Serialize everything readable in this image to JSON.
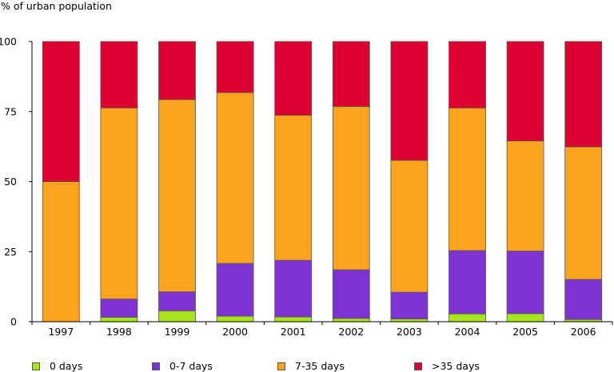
{
  "chart_data": {
    "type": "bar",
    "stacked": true,
    "title": "",
    "ylabel": "% of urban population",
    "xlabel": "",
    "ylim": [
      0,
      100
    ],
    "yticks": [
      0,
      25,
      50,
      75,
      100
    ],
    "grid": false,
    "legend_position": "bottom",
    "categories": [
      "1997",
      "1998",
      "1999",
      "2000",
      "2001",
      "2002",
      "2003",
      "2004",
      "2005",
      "2006"
    ],
    "series": [
      {
        "name": "0 days",
        "color": "#a6e51a",
        "values": [
          0,
          1.6,
          3.9,
          2.0,
          1.7,
          1.2,
          1.0,
          2.8,
          2.9,
          0.8
        ]
      },
      {
        "name": "0-7 days",
        "color": "#7f33d4",
        "values": [
          0,
          6.5,
          6.8,
          18.8,
          20.2,
          17.3,
          9.5,
          22.6,
          22.3,
          14.3
        ]
      },
      {
        "name": "7-35 days",
        "color": "#fca41c",
        "values": [
          50.0,
          68.2,
          68.6,
          61.0,
          51.8,
          58.3,
          47.1,
          50.9,
          39.3,
          47.3
        ]
      },
      {
        "name": ">35 days",
        "color": "#de0030",
        "values": [
          50.0,
          23.7,
          20.7,
          18.2,
          26.3,
          23.2,
          42.4,
          23.7,
          35.5,
          37.6
        ]
      }
    ]
  }
}
